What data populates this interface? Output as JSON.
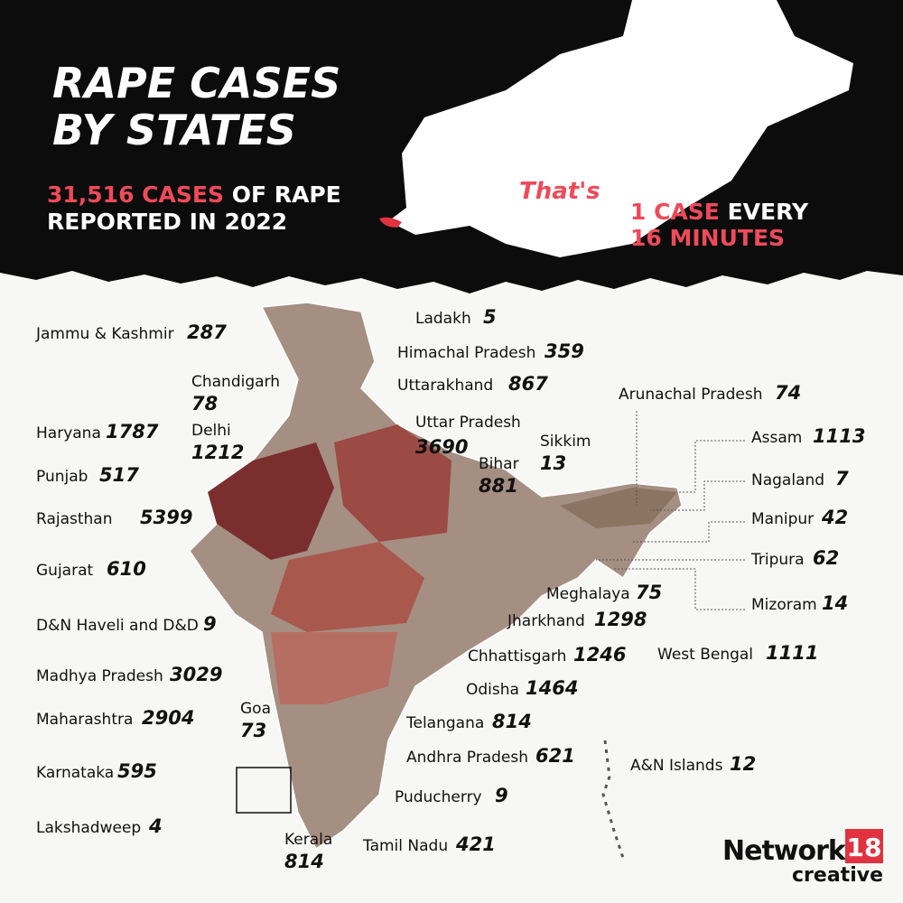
{
  "header": {
    "title_lines": [
      "RAPE CASES",
      "BY STATES"
    ],
    "total_highlight": "31,516 CASES",
    "total_rest": "OF RAPE",
    "total_line2": "REPORTED IN 2022",
    "thats": "That's",
    "rate_highlight": "1 CASE",
    "rate_rest": "EVERY",
    "rate_line2": "16 MINUTES"
  },
  "states": [
    {
      "name": "Jammu & Kashmir",
      "value": 287
    },
    {
      "name": "Ladakh",
      "value": 5
    },
    {
      "name": "Himachal Pradesh",
      "value": 359
    },
    {
      "name": "Chandigarh",
      "value": 78
    },
    {
      "name": "Uttarakhand",
      "value": 867
    },
    {
      "name": "Haryana",
      "value": 1787
    },
    {
      "name": "Delhi",
      "value": 1212
    },
    {
      "name": "Uttar Pradesh",
      "value": 3690
    },
    {
      "name": "Arunachal Pradesh",
      "value": 74
    },
    {
      "name": "Assam",
      "value": 1113
    },
    {
      "name": "Sikkim",
      "value": 13
    },
    {
      "name": "Bihar",
      "value": 881
    },
    {
      "name": "Punjab",
      "value": 517
    },
    {
      "name": "Nagaland",
      "value": 7
    },
    {
      "name": "Rajasthan",
      "value": 5399
    },
    {
      "name": "Manipur",
      "value": 42
    },
    {
      "name": "Gujarat",
      "value": 610
    },
    {
      "name": "Tripura",
      "value": 62
    },
    {
      "name": "Meghalaya",
      "value": 75
    },
    {
      "name": "Mizoram",
      "value": 14
    },
    {
      "name": "D&N Haveli and D&D",
      "value": 9
    },
    {
      "name": "Jharkhand",
      "value": 1298
    },
    {
      "name": "West Bengal",
      "value": 1111
    },
    {
      "name": "Chhattisgarh",
      "value": 1246
    },
    {
      "name": "Madhya Pradesh",
      "value": 3029
    },
    {
      "name": "Odisha",
      "value": 1464
    },
    {
      "name": "Maharashtra",
      "value": 2904
    },
    {
      "name": "Goa",
      "value": 73
    },
    {
      "name": "Telangana",
      "value": 814
    },
    {
      "name": "Andhra Pradesh",
      "value": 621
    },
    {
      "name": "A&N Islands",
      "value": 12
    },
    {
      "name": "Karnataka",
      "value": 595
    },
    {
      "name": "Puducherry",
      "value": 9
    },
    {
      "name": "Lakshadweep",
      "value": 4
    },
    {
      "name": "Kerala",
      "value": 814
    },
    {
      "name": "Tamil Nadu",
      "value": 421
    }
  ],
  "logo": {
    "word": "Network",
    "number": "18",
    "sub": "creative"
  }
}
